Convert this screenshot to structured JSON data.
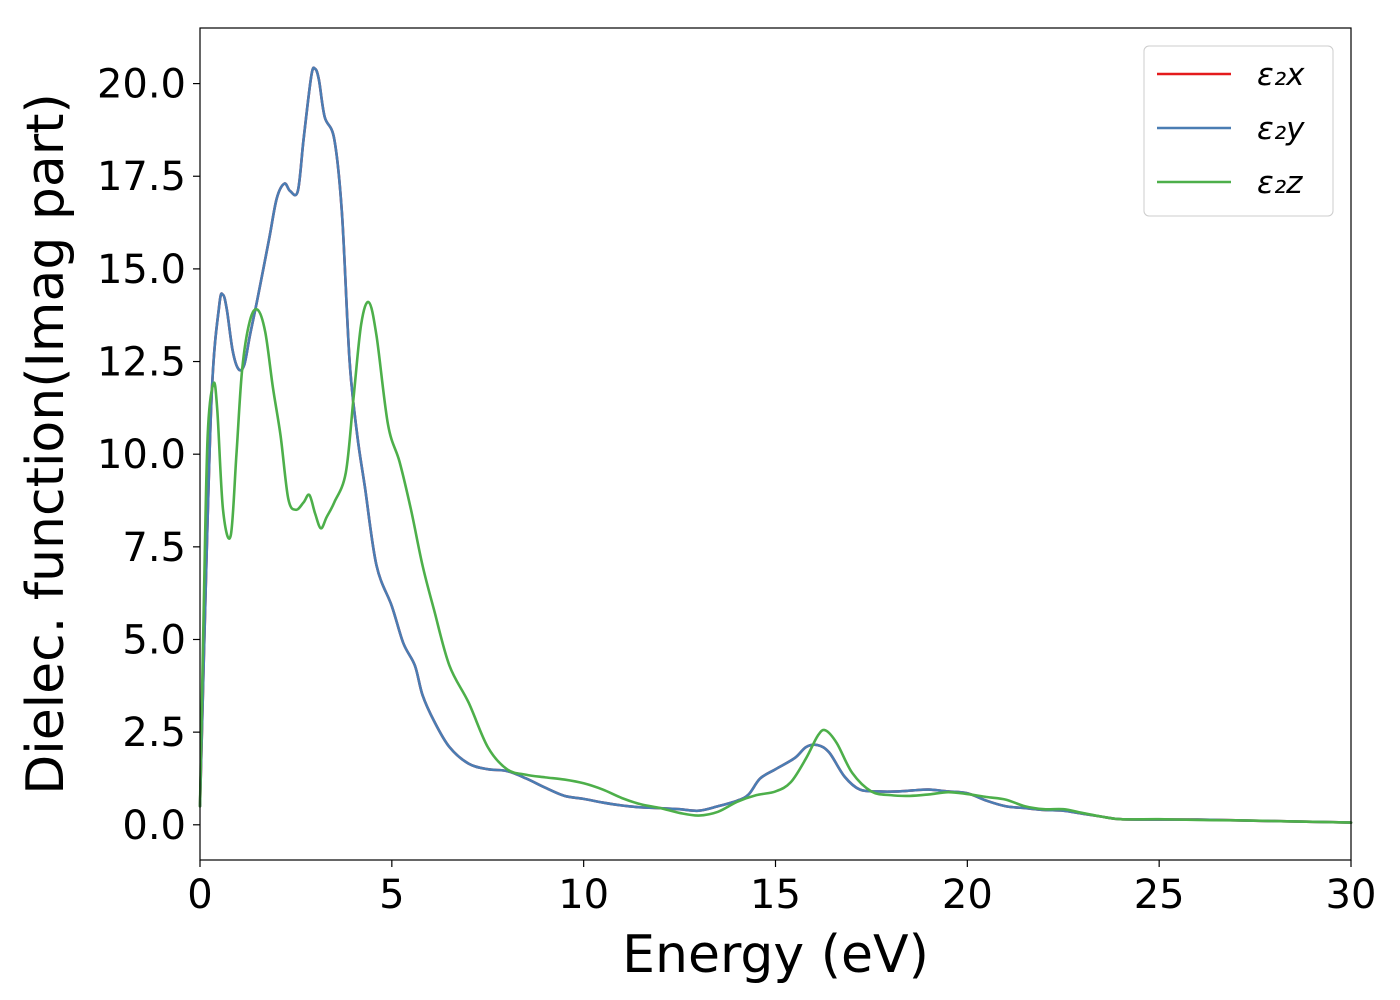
{
  "chart_data": {
    "type": "line",
    "title": "",
    "xlabel": "Energy (eV)",
    "ylabel": "Dielec. function(Imag part)",
    "xlim": [
      0,
      30
    ],
    "ylim": [
      -0.95,
      21.5
    ],
    "xticks": [
      0,
      5,
      10,
      15,
      20,
      25,
      30
    ],
    "xtick_labels": [
      "0",
      "5",
      "10",
      "15",
      "20",
      "25",
      "30"
    ],
    "yticks": [
      0,
      2.5,
      5,
      7.5,
      10,
      12.5,
      15,
      17.5,
      20
    ],
    "ytick_labels": [
      "0.0",
      "2.5",
      "5.0",
      "7.5",
      "10.0",
      "12.5",
      "15.0",
      "17.5",
      "20.0"
    ],
    "grid": false,
    "legend_position": "top-right",
    "series": [
      {
        "name": "ε₂x",
        "color": "#e41a1c",
        "x": [
          0,
          0.1,
          0.3,
          0.5,
          0.6,
          0.7,
          0.85,
          1.0,
          1.15,
          1.3,
          1.5,
          1.8,
          2.0,
          2.2,
          2.35,
          2.55,
          2.7,
          2.9,
          3.0,
          3.1,
          3.25,
          3.5,
          3.7,
          3.9,
          4.1,
          4.3,
          4.6,
          5.0,
          5.3,
          5.6,
          5.8,
          6.1,
          6.5,
          7.0,
          7.5,
          8.0,
          8.5,
          9.0,
          9.5,
          10.0,
          10.5,
          11.0,
          11.5,
          12.0,
          12.5,
          13.0,
          13.5,
          14.0,
          14.3,
          14.6,
          15.0,
          15.5,
          15.8,
          16.1,
          16.4,
          16.8,
          17.2,
          17.7,
          18.2,
          18.6,
          19.0,
          19.5,
          20.0,
          20.5,
          21.0,
          21.5,
          22.0,
          22.5,
          23.0,
          23.5,
          24.0,
          25.0,
          26.0,
          27.0,
          28.0,
          29.0,
          30.0
        ],
        "values": [
          0.5,
          4.5,
          11.5,
          14.0,
          14.3,
          13.9,
          12.8,
          12.3,
          12.4,
          13.2,
          14.2,
          15.8,
          16.9,
          17.3,
          17.1,
          17.1,
          18.5,
          20.2,
          20.4,
          20.1,
          19.1,
          18.5,
          16.5,
          12.5,
          10.5,
          9.1,
          7.0,
          5.9,
          4.9,
          4.3,
          3.5,
          2.8,
          2.1,
          1.65,
          1.5,
          1.45,
          1.25,
          1.0,
          0.78,
          0.7,
          0.6,
          0.52,
          0.47,
          0.45,
          0.42,
          0.38,
          0.5,
          0.65,
          0.82,
          1.25,
          1.5,
          1.8,
          2.1,
          2.15,
          1.95,
          1.3,
          0.95,
          0.9,
          0.9,
          0.93,
          0.95,
          0.9,
          0.85,
          0.65,
          0.5,
          0.45,
          0.4,
          0.38,
          0.3,
          0.22,
          0.15,
          0.14,
          0.14,
          0.12,
          0.1,
          0.08,
          0.06
        ]
      },
      {
        "name": "ε₂y",
        "color": "#4a7db3",
        "x": [
          0,
          0.1,
          0.3,
          0.5,
          0.6,
          0.7,
          0.85,
          1.0,
          1.15,
          1.3,
          1.5,
          1.8,
          2.0,
          2.2,
          2.35,
          2.55,
          2.7,
          2.9,
          3.0,
          3.1,
          3.25,
          3.5,
          3.7,
          3.9,
          4.1,
          4.3,
          4.6,
          5.0,
          5.3,
          5.6,
          5.8,
          6.1,
          6.5,
          7.0,
          7.5,
          8.0,
          8.5,
          9.0,
          9.5,
          10.0,
          10.5,
          11.0,
          11.5,
          12.0,
          12.5,
          13.0,
          13.5,
          14.0,
          14.3,
          14.6,
          15.0,
          15.5,
          15.8,
          16.1,
          16.4,
          16.8,
          17.2,
          17.7,
          18.2,
          18.6,
          19.0,
          19.5,
          20.0,
          20.5,
          21.0,
          21.5,
          22.0,
          22.5,
          23.0,
          23.5,
          24.0,
          25.0,
          26.0,
          27.0,
          28.0,
          29.0,
          30.0
        ],
        "values": [
          0.5,
          4.5,
          11.5,
          14.0,
          14.3,
          13.9,
          12.8,
          12.3,
          12.4,
          13.2,
          14.2,
          15.8,
          16.9,
          17.3,
          17.1,
          17.1,
          18.5,
          20.2,
          20.4,
          20.1,
          19.1,
          18.5,
          16.5,
          12.5,
          10.5,
          9.1,
          7.0,
          5.9,
          4.9,
          4.3,
          3.5,
          2.8,
          2.1,
          1.65,
          1.5,
          1.45,
          1.25,
          1.0,
          0.78,
          0.7,
          0.6,
          0.52,
          0.47,
          0.45,
          0.42,
          0.38,
          0.5,
          0.65,
          0.82,
          1.25,
          1.5,
          1.8,
          2.1,
          2.15,
          1.95,
          1.3,
          0.95,
          0.9,
          0.9,
          0.93,
          0.95,
          0.9,
          0.85,
          0.65,
          0.5,
          0.45,
          0.4,
          0.38,
          0.3,
          0.22,
          0.15,
          0.14,
          0.14,
          0.12,
          0.1,
          0.08,
          0.06
        ]
      },
      {
        "name": "ε₂z",
        "color": "#4daf4a",
        "x": [
          0,
          0.1,
          0.2,
          0.35,
          0.45,
          0.6,
          0.8,
          0.95,
          1.1,
          1.3,
          1.5,
          1.7,
          1.9,
          2.1,
          2.3,
          2.5,
          2.7,
          2.85,
          3.0,
          3.15,
          3.3,
          3.5,
          3.8,
          4.0,
          4.2,
          4.4,
          4.6,
          4.9,
          5.2,
          5.5,
          5.8,
          6.1,
          6.5,
          7.0,
          7.5,
          8.0,
          8.5,
          9.0,
          9.5,
          10.0,
          10.5,
          11.0,
          11.5,
          12.0,
          12.5,
          13.0,
          13.5,
          14.0,
          14.5,
          15.0,
          15.4,
          15.8,
          16.1,
          16.3,
          16.6,
          17.0,
          17.5,
          18.0,
          18.5,
          19.0,
          19.5,
          20.0,
          20.5,
          21.0,
          21.5,
          22.0,
          22.5,
          23.0,
          23.5,
          24.0,
          25.0,
          26.0,
          27.0,
          28.0,
          29.0,
          30.0
        ],
        "values": [
          0.5,
          6.0,
          10.5,
          11.9,
          11.2,
          8.5,
          7.8,
          10.0,
          12.3,
          13.6,
          13.9,
          13.3,
          11.8,
          10.5,
          8.8,
          8.5,
          8.7,
          8.9,
          8.4,
          8.0,
          8.3,
          8.7,
          9.5,
          11.5,
          13.5,
          14.1,
          13.2,
          10.8,
          9.8,
          8.5,
          7.0,
          5.8,
          4.3,
          3.3,
          2.1,
          1.5,
          1.35,
          1.28,
          1.22,
          1.12,
          0.95,
          0.72,
          0.55,
          0.45,
          0.32,
          0.25,
          0.35,
          0.62,
          0.8,
          0.9,
          1.15,
          1.8,
          2.4,
          2.55,
          2.2,
          1.4,
          0.9,
          0.8,
          0.78,
          0.82,
          0.88,
          0.83,
          0.75,
          0.68,
          0.5,
          0.42,
          0.42,
          0.32,
          0.22,
          0.15,
          0.15,
          0.13,
          0.12,
          0.1,
          0.08,
          0.06
        ]
      }
    ]
  }
}
